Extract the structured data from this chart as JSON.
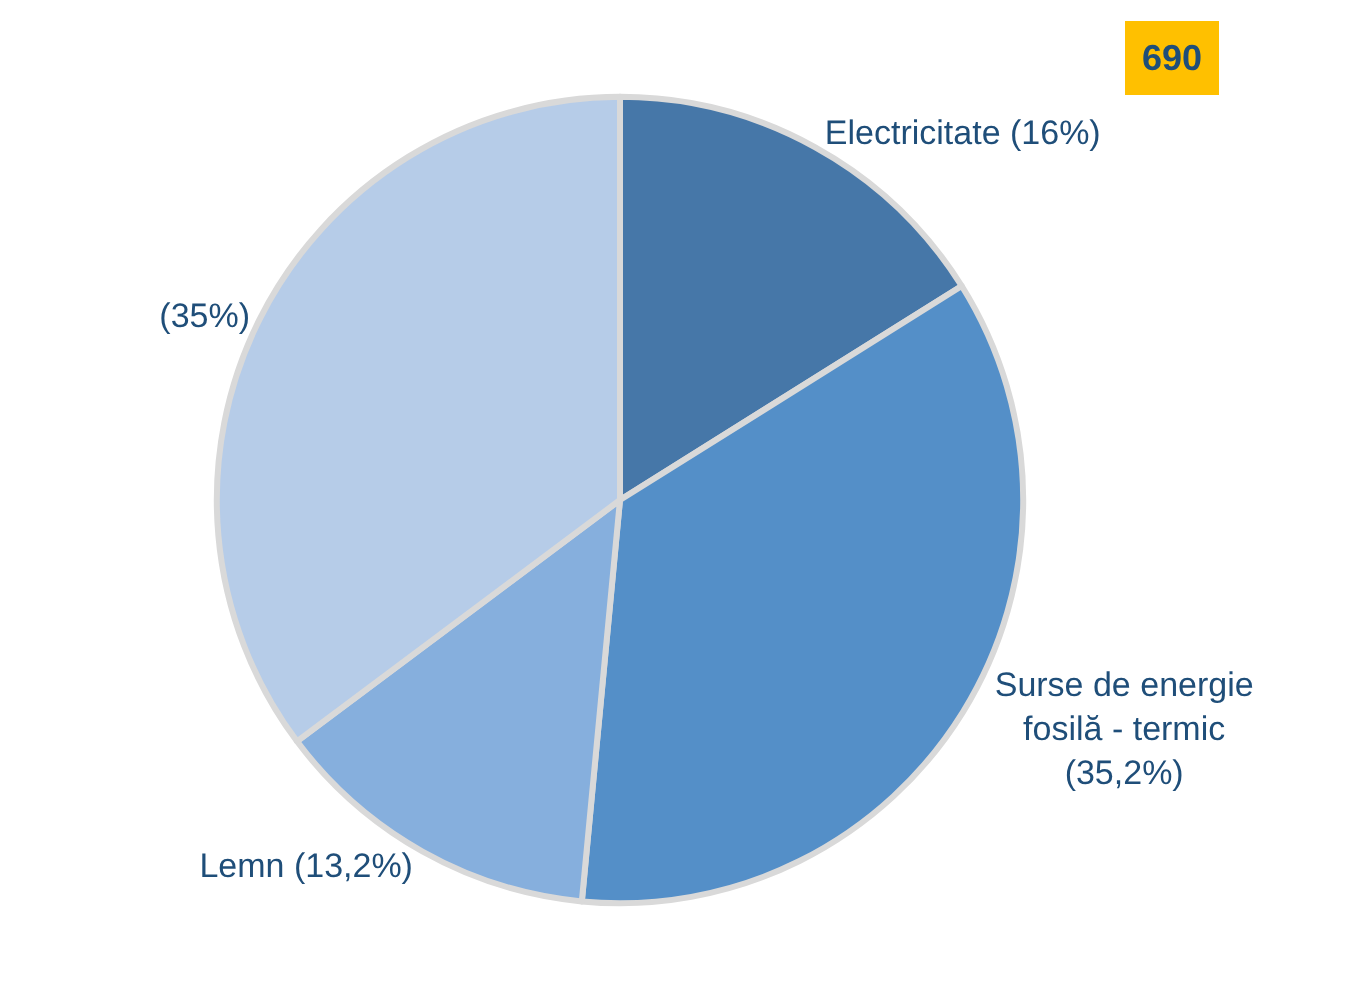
{
  "chart_data": {
    "type": "pie",
    "categories": [
      "Electricitate (16%)",
      "Surse de energie\nfosilă - termic\n(35,2%)",
      "Lemn (13,2%)",
      "(35%)"
    ],
    "values": [
      16,
      35.2,
      13.2,
      35
    ],
    "colors": [
      "#4677a8",
      "#548fc8",
      "#86afdd",
      "#b6cce8"
    ],
    "annotations": [
      "690"
    ],
    "legend": false
  }
}
